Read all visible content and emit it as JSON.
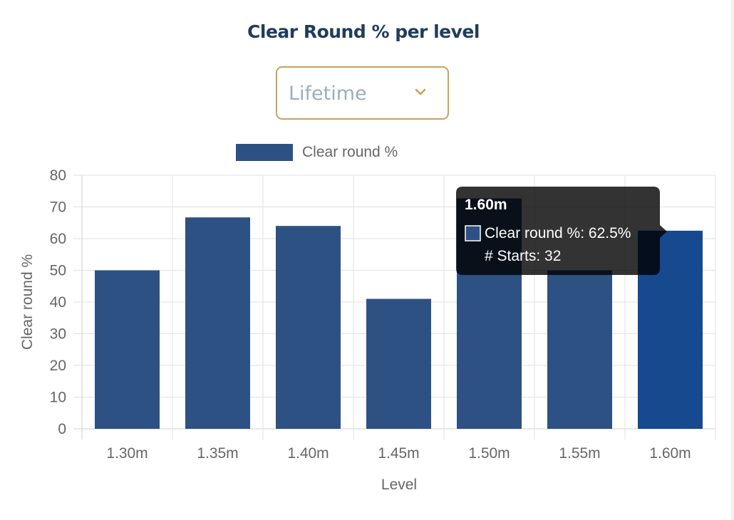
{
  "page": {
    "title": "Clear Round % per level"
  },
  "filter": {
    "selected_value": "Lifetime",
    "icon": "chevron-down-icon"
  },
  "chart_data": {
    "type": "bar",
    "categories": [
      "1.30m",
      "1.35m",
      "1.40m",
      "1.45m",
      "1.50m",
      "1.55m",
      "1.60m"
    ],
    "series": [
      {
        "name": "Clear round %",
        "values": [
          50,
          66.7,
          64,
          41,
          72.7,
          50,
          62.5
        ],
        "color": "#2e5184",
        "hover_color": "#17498f"
      }
    ],
    "xlabel": "Level",
    "ylabel": "Clear round %",
    "ylim": [
      0,
      80
    ],
    "yticks": [
      "0",
      "10",
      "20",
      "30",
      "40",
      "50",
      "60",
      "70",
      "80"
    ],
    "grid": true,
    "legend": "top",
    "tooltip": {
      "category_index": 6,
      "title": "1.60m",
      "lines": [
        "Clear round %: 62.5%",
        "# Starts: 32"
      ]
    }
  }
}
